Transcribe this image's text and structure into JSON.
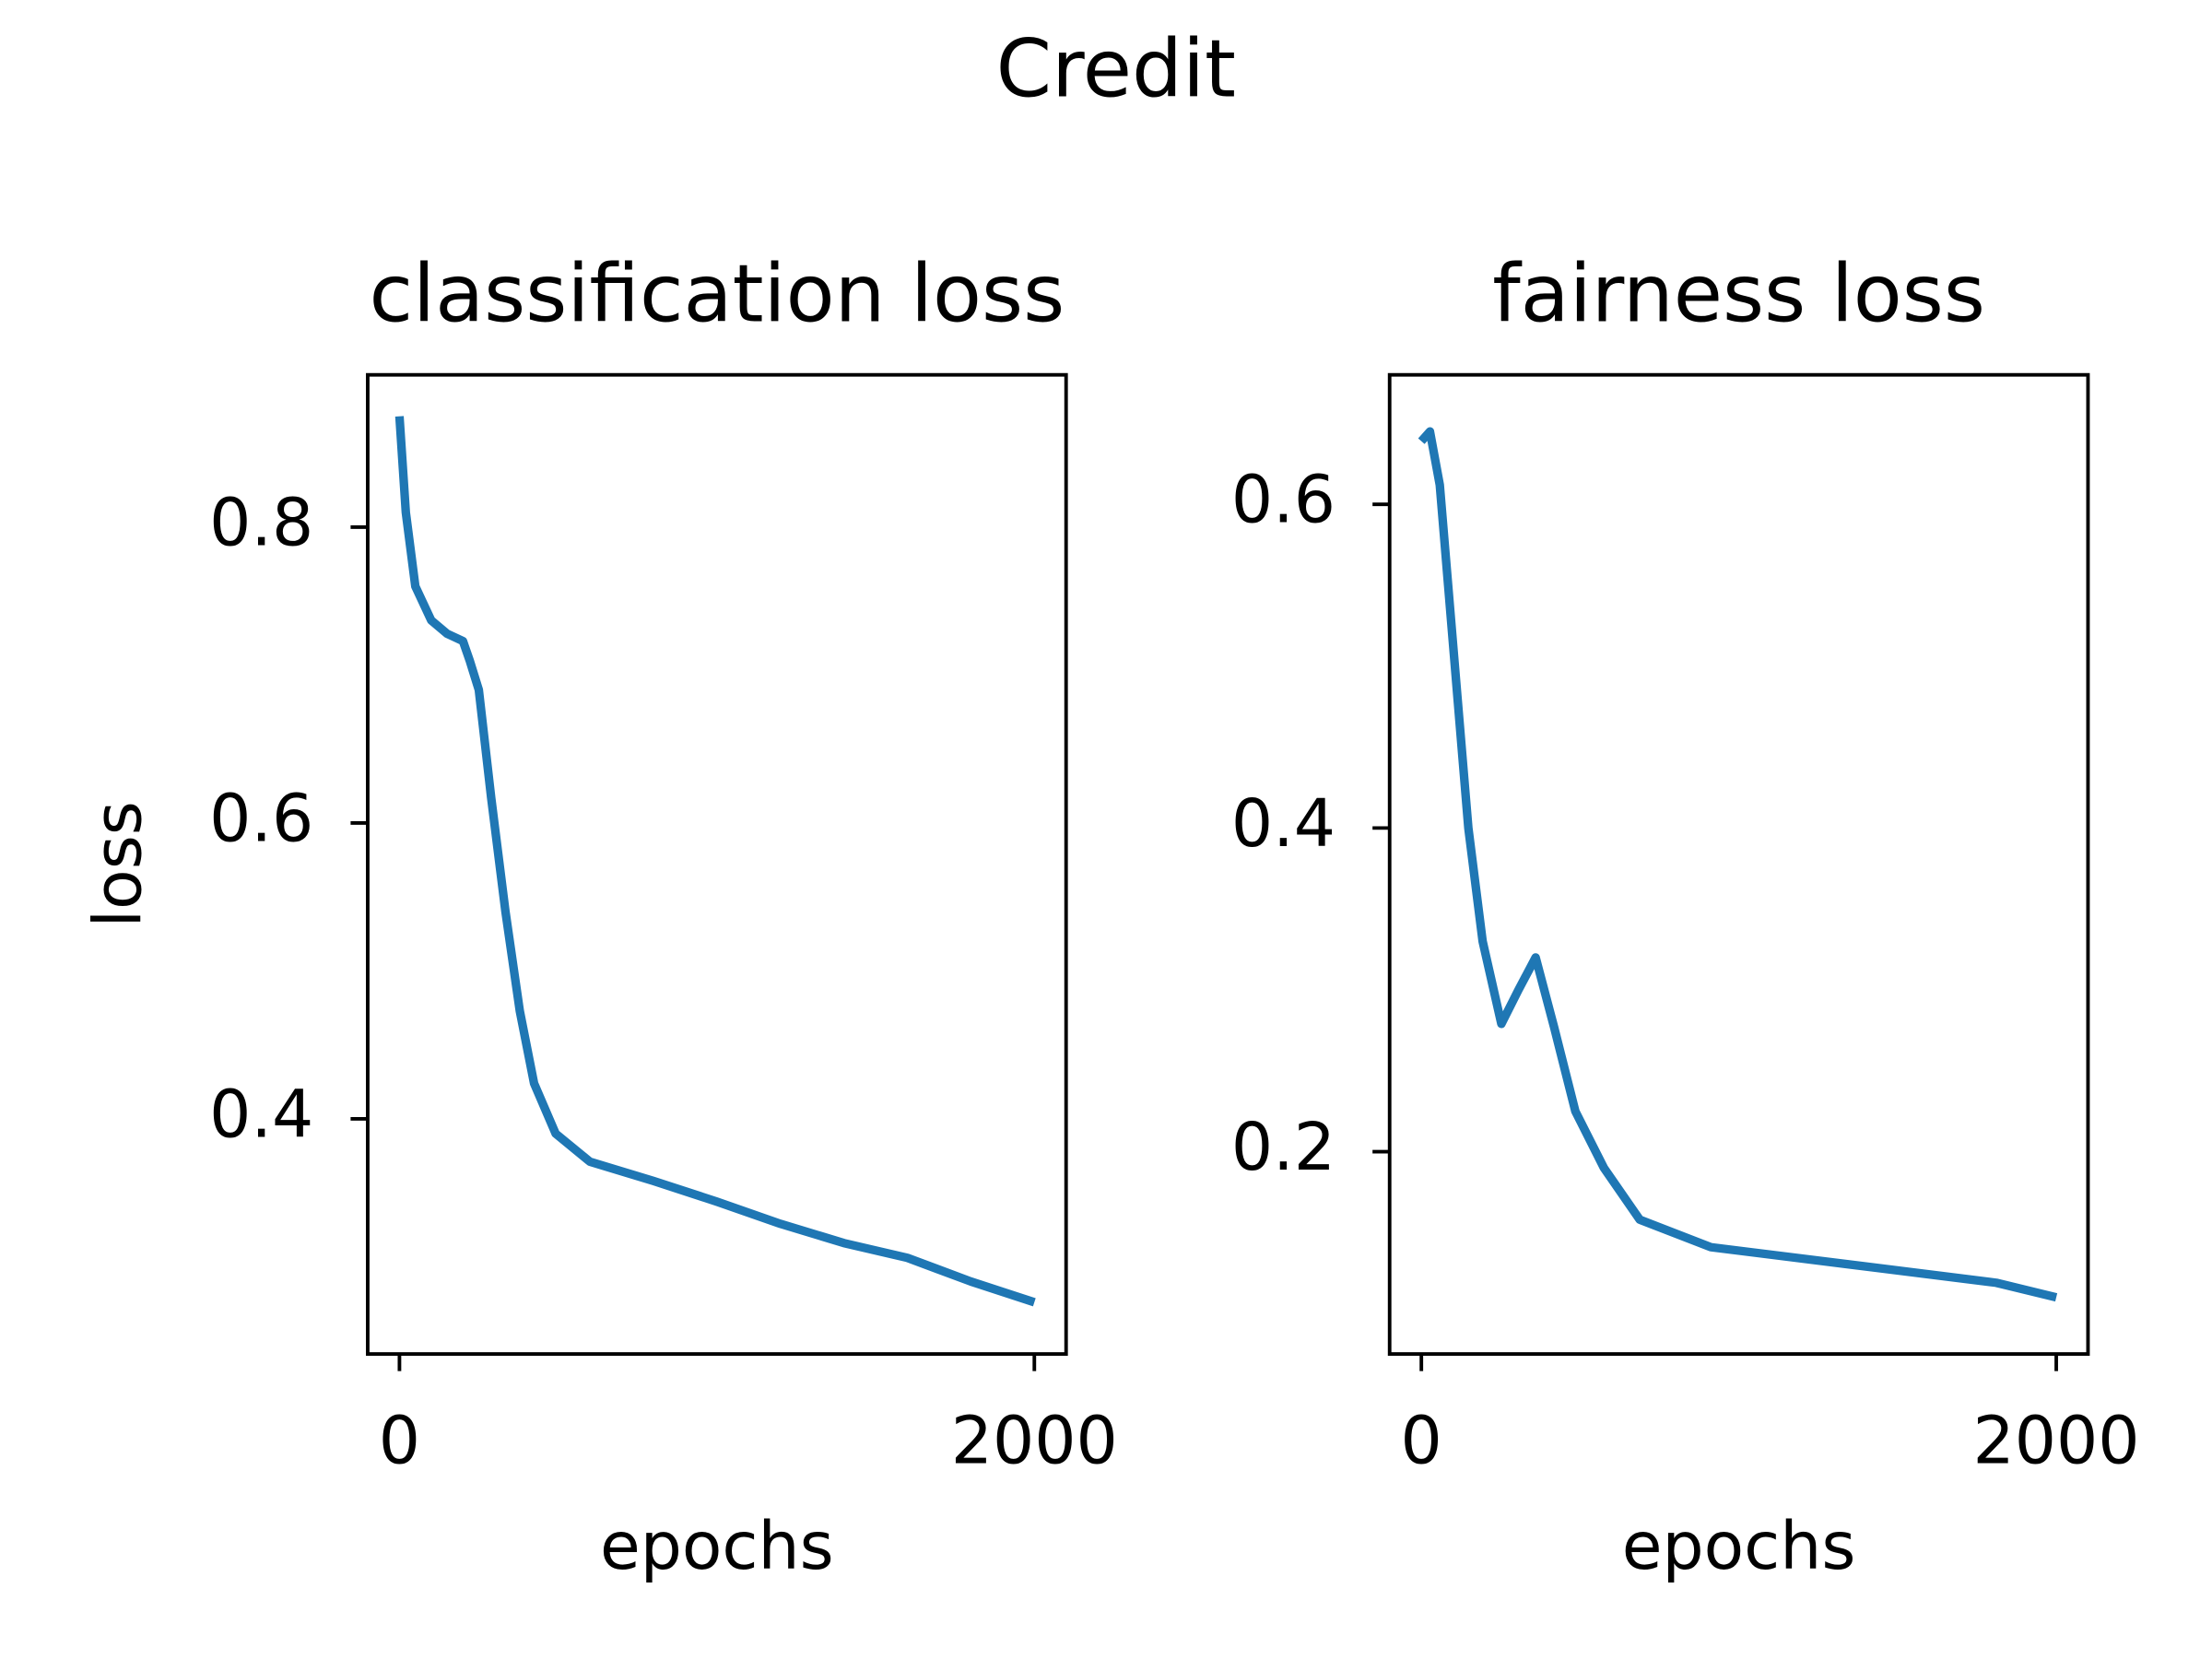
{
  "title": "Credit",
  "chart_data": [
    {
      "type": "line",
      "title": "classification loss",
      "xlabel": "epochs",
      "ylabel": "loss",
      "xlim": [
        -100,
        2100
      ],
      "ylim": [
        0.241,
        0.903
      ],
      "xticks": [
        0,
        2000
      ],
      "yticks": [
        0.4,
        0.6,
        0.8
      ],
      "x": [
        0,
        20,
        50,
        100,
        150,
        200,
        221,
        250,
        289,
        334,
        379,
        424,
        492,
        600,
        800,
        1000,
        1200,
        1400,
        1600,
        1800,
        2000
      ],
      "series": [
        {
          "name": "classification loss",
          "color": "#1f77b4",
          "values": [
            0.875,
            0.81,
            0.76,
            0.737,
            0.728,
            0.723,
            0.71,
            0.69,
            0.617,
            0.54,
            0.473,
            0.424,
            0.39,
            0.371,
            0.358,
            0.344,
            0.329,
            0.316,
            0.306,
            0.29,
            0.276
          ]
        }
      ]
    },
    {
      "type": "line",
      "title": "fairness loss",
      "xlabel": "epochs",
      "xlim": [
        -100,
        2100
      ],
      "ylim": [
        0.075,
        0.68
      ],
      "xticks": [
        0,
        2000
      ],
      "yticks": [
        0.2,
        0.4,
        0.6
      ],
      "x": [
        0,
        27,
        58,
        103,
        148,
        193,
        252,
        306,
        360,
        418,
        485,
        575,
        688,
        912,
        1362,
        1811,
        2000
      ],
      "series": [
        {
          "name": "fairness loss",
          "color": "#1f77b4",
          "values": [
            0.639,
            0.645,
            0.612,
            0.506,
            0.4,
            0.33,
            0.279,
            0.3,
            0.32,
            0.277,
            0.225,
            0.19,
            0.158,
            0.141,
            0.13,
            0.119,
            0.11
          ]
        }
      ]
    }
  ]
}
